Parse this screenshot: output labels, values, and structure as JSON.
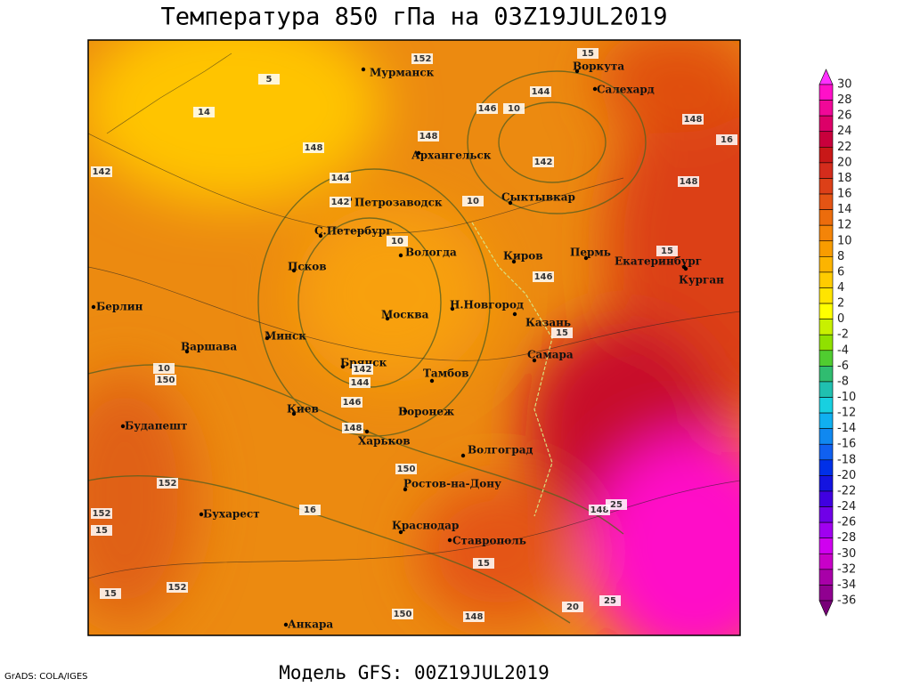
{
  "header": {
    "title": "Температура 850 гПа на 03Z19JUL2019"
  },
  "footer": {
    "model": "Модель GFS: 00Z19JUL2019",
    "credit": "GrADS: COLA/IGES"
  },
  "cities": [
    "Мурманск",
    "Воркута",
    "Салехард",
    "Архангельск",
    "Петрозаводск",
    "Сыктывкар",
    "С.Петербург",
    "Вологда",
    "Киров",
    "Пермь",
    "Екатеринбург",
    "Курган",
    "Псков",
    "Москва",
    "Н.Новгород",
    "Казань",
    "Самара",
    "Берлин",
    "Варшава",
    "Минск",
    "Брянск",
    "Тамбов",
    "Воронеж",
    "Киев",
    "Харьков",
    "Будапешт",
    "Волгоград",
    "Ростов-на-Дону",
    "Бухарест",
    "Краснодар",
    "Ставрополь",
    "Анкара"
  ],
  "contour_labels": [
    152,
    144,
    146,
    10,
    148,
    148,
    142,
    148,
    144,
    142,
    10,
    148,
    14,
    142,
    15,
    16,
    10,
    146,
    15,
    15,
    10,
    150,
    142,
    144,
    146,
    148,
    150,
    152,
    152,
    15,
    16,
    148,
    25,
    15,
    152,
    15,
    150,
    148,
    20,
    25,
    5
  ],
  "colorbar": {
    "levels": [
      30,
      28,
      26,
      24,
      22,
      20,
      18,
      16,
      14,
      12,
      10,
      8,
      6,
      4,
      2,
      0,
      -2,
      -4,
      -6,
      -8,
      -10,
      -12,
      -14,
      -16,
      -18,
      -20,
      -22,
      -24,
      -26,
      -28,
      -30,
      -32,
      -34,
      -36
    ],
    "colors": [
      "#ff30ff",
      "#ff10c8",
      "#f00898",
      "#dc0068",
      "#c8003c",
      "#c81818",
      "#d42c1c",
      "#dc4018",
      "#e45414",
      "#ec6c0c",
      "#f48408",
      "#f89c00",
      "#fcb400",
      "#ffcc00",
      "#ffe400",
      "#ffff00",
      "#c8f000",
      "#90e000",
      "#50cc30",
      "#30bc70",
      "#20c0b0",
      "#18d0e0",
      "#10b0f0",
      "#1088f0",
      "#1060f0",
      "#0030e8",
      "#1414e0",
      "#4000e0",
      "#7000e8",
      "#a000f0",
      "#d000f0",
      "#c800c8",
      "#a800a8",
      "#900090",
      "#780078"
    ]
  }
}
